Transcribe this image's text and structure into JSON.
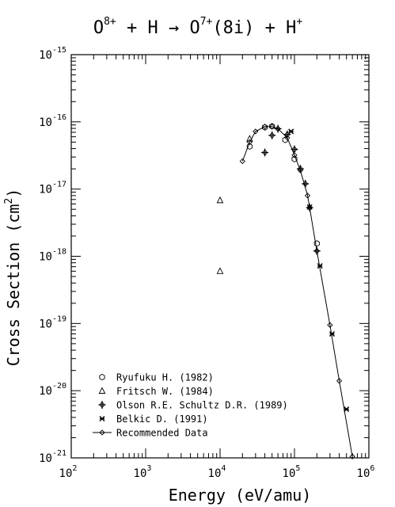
{
  "chart_data": {
    "type": "scatter",
    "title": {
      "t1": "O",
      "t1sup": "8+",
      "t2": " + H → O",
      "t2sup": "7+",
      "t3": "(8i) + H",
      "t3sup": "+"
    },
    "xlabel": "Energy (eV/amu)",
    "ylabel": {
      "main": "Cross Section (cm",
      "sup": "2",
      "tail": ")"
    },
    "x_scale": "log",
    "y_scale": "log",
    "xlim": [
      100,
      1000000
    ],
    "ylim": [
      1e-21,
      1e-15
    ],
    "x_ticks": [
      {
        "base": "10",
        "exp": "2"
      },
      {
        "base": "10",
        "exp": "3"
      },
      {
        "base": "10",
        "exp": "4"
      },
      {
        "base": "10",
        "exp": "5"
      },
      {
        "base": "10",
        "exp": "6"
      }
    ],
    "y_ticks": [
      {
        "base": "10",
        "exp": "-15"
      },
      {
        "base": "10",
        "exp": "-16"
      },
      {
        "base": "10",
        "exp": "-17"
      },
      {
        "base": "10",
        "exp": "-18"
      },
      {
        "base": "10",
        "exp": "-19"
      },
      {
        "base": "10",
        "exp": "-20"
      },
      {
        "base": "10",
        "exp": "-21"
      }
    ],
    "legend_position": "bottom-left",
    "series": [
      {
        "name": "Ryufuku H. (1982)",
        "marker": "hexagon-open",
        "x": [
          25000,
          40000,
          50000,
          75000,
          100000,
          200000
        ],
        "y": [
          4.3e-17,
          8.3e-17,
          8.6e-17,
          5.4e-17,
          2.8e-17,
          1.55e-18
        ]
      },
      {
        "name": "Fritsch W. (1984)",
        "marker": "triangle-open",
        "x": [
          10000,
          10000,
          25000
        ],
        "y": [
          6.8e-18,
          6e-19,
          5.6e-17
        ]
      },
      {
        "name": "Olson R.E. Schultz D.R. (1989)",
        "marker": "diamond-plus",
        "x": [
          40000,
          50000,
          60000,
          80000,
          100000,
          120000,
          140000,
          160000,
          200000
        ],
        "y": [
          3.5e-17,
          6.3e-17,
          7.9e-17,
          6.5e-17,
          3.9e-17,
          2e-17,
          1.2e-17,
          5.3e-18,
          1.2e-18
        ]
      },
      {
        "name": "Belkic D. (1991)",
        "marker": "star-x",
        "x": [
          90000,
          160000,
          220000,
          320000,
          500000
        ],
        "y": [
          7.2e-17,
          5.4e-18,
          7.2e-19,
          7e-20,
          5.3e-21
        ]
      },
      {
        "name": "Recommended Data",
        "marker": "diamond-line",
        "x": [
          20000,
          25000,
          30000,
          40000,
          50000,
          60000,
          80000,
          100000,
          120000,
          150000,
          200000,
          300000,
          400000,
          600000
        ],
        "y": [
          2.6e-17,
          5e-17,
          7.2e-17,
          8.5e-17,
          8.5e-17,
          7.9e-17,
          5.8e-17,
          3.2e-17,
          1.9e-17,
          8e-18,
          1.2e-18,
          9.5e-20,
          1.4e-20,
          1.05e-21
        ]
      }
    ]
  }
}
